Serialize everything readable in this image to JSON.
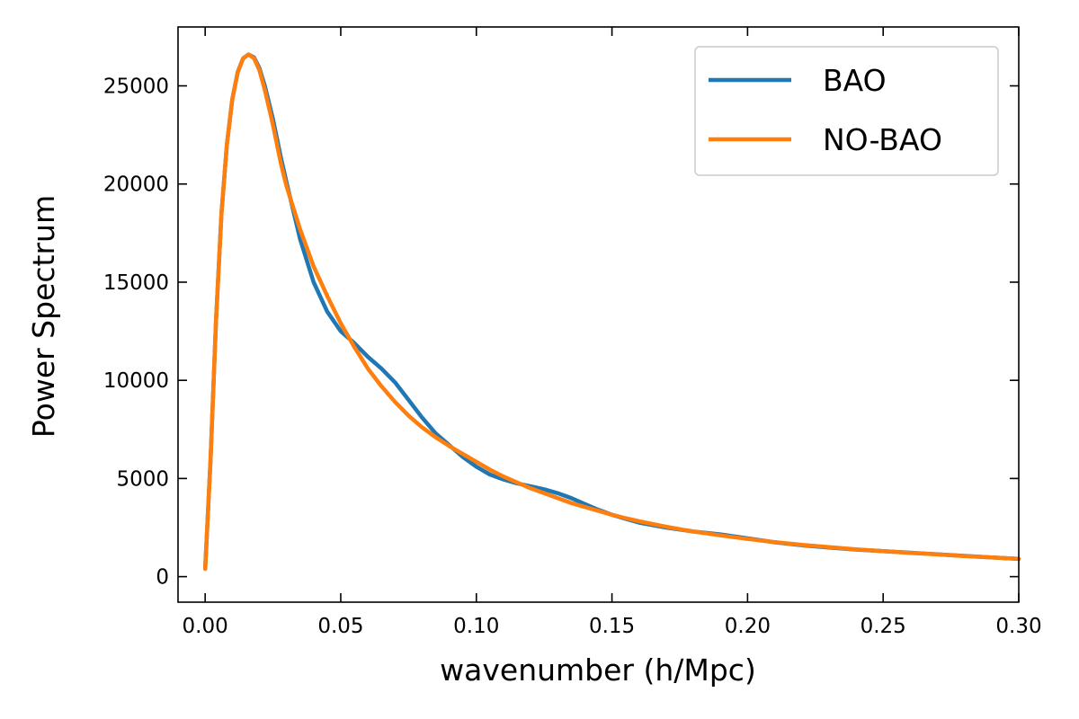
{
  "chart_data": {
    "type": "line",
    "title": "",
    "xlabel": "wavenumber (h/Mpc)",
    "ylabel": "Power Spectrum",
    "xlim": [
      -0.01,
      0.3
    ],
    "ylim": [
      -1300,
      28000
    ],
    "x_ticks": [
      "0.00",
      "0.05",
      "0.10",
      "0.15",
      "0.20",
      "0.25",
      "0.30"
    ],
    "x_tick_values": [
      0.0,
      0.05,
      0.1,
      0.15,
      0.2,
      0.25,
      0.3
    ],
    "y_ticks": [
      "0",
      "5000",
      "10000",
      "15000",
      "20000",
      "25000"
    ],
    "y_tick_values": [
      0,
      5000,
      10000,
      15000,
      20000,
      25000
    ],
    "grid": false,
    "legend_position": "top-right",
    "series": [
      {
        "name": "BAO",
        "color": "#1f77b4",
        "points": [
          [
            0.0,
            400
          ],
          [
            0.002,
            6000
          ],
          [
            0.004,
            13000
          ],
          [
            0.006,
            18500
          ],
          [
            0.008,
            22000
          ],
          [
            0.01,
            24300
          ],
          [
            0.012,
            25700
          ],
          [
            0.014,
            26400
          ],
          [
            0.016,
            26600
          ],
          [
            0.018,
            26450
          ],
          [
            0.02,
            25900
          ],
          [
            0.022,
            25000
          ],
          [
            0.025,
            23300
          ],
          [
            0.028,
            21300
          ],
          [
            0.03,
            20100
          ],
          [
            0.035,
            17200
          ],
          [
            0.04,
            15000
          ],
          [
            0.045,
            13500
          ],
          [
            0.05,
            12500
          ],
          [
            0.055,
            11900
          ],
          [
            0.06,
            11200
          ],
          [
            0.065,
            10600
          ],
          [
            0.07,
            9900
          ],
          [
            0.075,
            9000
          ],
          [
            0.08,
            8100
          ],
          [
            0.085,
            7300
          ],
          [
            0.09,
            6700
          ],
          [
            0.095,
            6100
          ],
          [
            0.1,
            5600
          ],
          [
            0.105,
            5200
          ],
          [
            0.11,
            4950
          ],
          [
            0.115,
            4750
          ],
          [
            0.12,
            4600
          ],
          [
            0.125,
            4450
          ],
          [
            0.13,
            4250
          ],
          [
            0.135,
            4000
          ],
          [
            0.14,
            3700
          ],
          [
            0.145,
            3400
          ],
          [
            0.15,
            3150
          ],
          [
            0.155,
            2950
          ],
          [
            0.16,
            2750
          ],
          [
            0.17,
            2500
          ],
          [
            0.18,
            2300
          ],
          [
            0.19,
            2150
          ],
          [
            0.2,
            1950
          ],
          [
            0.21,
            1750
          ],
          [
            0.22,
            1600
          ],
          [
            0.23,
            1480
          ],
          [
            0.24,
            1380
          ],
          [
            0.25,
            1300
          ],
          [
            0.26,
            1220
          ],
          [
            0.27,
            1140
          ],
          [
            0.28,
            1060
          ],
          [
            0.29,
            980
          ],
          [
            0.3,
            900
          ]
        ]
      },
      {
        "name": "NO-BAO",
        "color": "#ff7f0e",
        "points": [
          [
            0.0,
            400
          ],
          [
            0.002,
            6000
          ],
          [
            0.004,
            13000
          ],
          [
            0.006,
            18500
          ],
          [
            0.008,
            22000
          ],
          [
            0.01,
            24300
          ],
          [
            0.012,
            25700
          ],
          [
            0.014,
            26400
          ],
          [
            0.016,
            26600
          ],
          [
            0.018,
            26400
          ],
          [
            0.02,
            25800
          ],
          [
            0.022,
            24800
          ],
          [
            0.025,
            23000
          ],
          [
            0.028,
            21000
          ],
          [
            0.03,
            19900
          ],
          [
            0.035,
            17700
          ],
          [
            0.04,
            15800
          ],
          [
            0.045,
            14300
          ],
          [
            0.05,
            12900
          ],
          [
            0.055,
            11700
          ],
          [
            0.06,
            10600
          ],
          [
            0.065,
            9700
          ],
          [
            0.07,
            8900
          ],
          [
            0.075,
            8200
          ],
          [
            0.08,
            7600
          ],
          [
            0.085,
            7100
          ],
          [
            0.09,
            6650
          ],
          [
            0.095,
            6250
          ],
          [
            0.1,
            5850
          ],
          [
            0.105,
            5450
          ],
          [
            0.11,
            5100
          ],
          [
            0.115,
            4800
          ],
          [
            0.12,
            4500
          ],
          [
            0.125,
            4250
          ],
          [
            0.13,
            4000
          ],
          [
            0.135,
            3750
          ],
          [
            0.14,
            3550
          ],
          [
            0.145,
            3350
          ],
          [
            0.15,
            3150
          ],
          [
            0.155,
            2980
          ],
          [
            0.16,
            2820
          ],
          [
            0.17,
            2540
          ],
          [
            0.18,
            2300
          ],
          [
            0.19,
            2100
          ],
          [
            0.2,
            1920
          ],
          [
            0.21,
            1760
          ],
          [
            0.22,
            1620
          ],
          [
            0.23,
            1500
          ],
          [
            0.24,
            1390
          ],
          [
            0.25,
            1300
          ],
          [
            0.26,
            1210
          ],
          [
            0.27,
            1130
          ],
          [
            0.28,
            1050
          ],
          [
            0.29,
            980
          ],
          [
            0.3,
            910
          ]
        ]
      }
    ]
  }
}
